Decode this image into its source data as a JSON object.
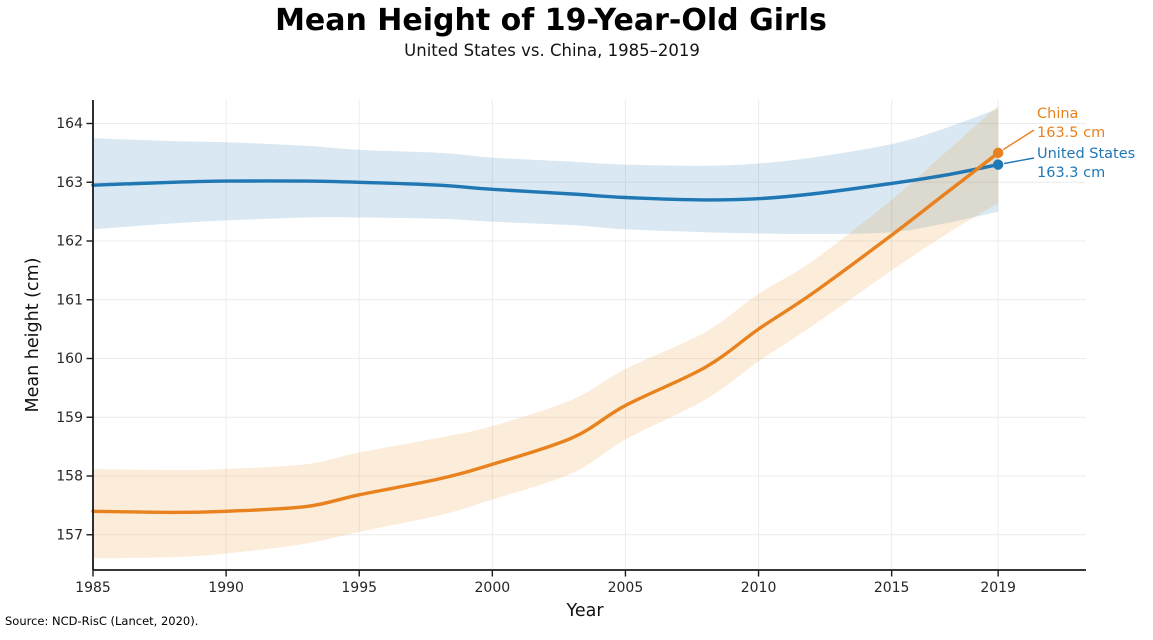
{
  "chart_data": {
    "type": "line",
    "title": "Mean Height of 19-Year-Old Girls",
    "subtitle": "United States vs. China, 1985–2019",
    "xlabel": "Year",
    "ylabel": "Mean height (cm)",
    "source": "Source: NCD-RisC (Lancet, 2020).",
    "xlim": [
      1985,
      2022.3
    ],
    "ylim": [
      156.4,
      164.4
    ],
    "x_ticks": [
      1985,
      1990,
      1995,
      2000,
      2005,
      2010,
      2015,
      2019
    ],
    "y_ticks": [
      157,
      158,
      159,
      160,
      161,
      162,
      163,
      164
    ],
    "grid": true,
    "grid_color": "#ececec",
    "axis_color": "#1a1a1a",
    "tick_label_color": "#262626",
    "legend_position": "end-of-line-labels",
    "x": [
      1985,
      1988,
      1990,
      1993,
      1995,
      1998,
      2000,
      2003,
      2005,
      2008,
      2010,
      2012,
      2015,
      2017,
      2019
    ],
    "series": [
      {
        "name": "United States",
        "color": "#1f77b4",
        "band_color": "rgba(31,119,180,0.17)",
        "values": [
          162.95,
          163.0,
          163.02,
          163.02,
          163.0,
          162.95,
          162.88,
          162.8,
          162.74,
          162.7,
          162.72,
          162.8,
          162.98,
          163.12,
          163.3
        ],
        "band_lo": [
          162.2,
          162.3,
          162.35,
          162.4,
          162.4,
          162.38,
          162.33,
          162.27,
          162.2,
          162.15,
          162.13,
          162.12,
          162.15,
          162.3,
          162.5
        ],
        "band_hi": [
          163.75,
          163.7,
          163.68,
          163.62,
          163.55,
          163.5,
          163.42,
          163.35,
          163.3,
          163.28,
          163.32,
          163.42,
          163.65,
          163.92,
          164.25
        ],
        "end_label": "United States",
        "end_value": 163.3,
        "end_value_label": "163.3 cm"
      },
      {
        "name": "China",
        "color": "#e8821e",
        "band_color": "rgba(240,140,34,0.17)",
        "values": [
          157.4,
          157.38,
          157.4,
          157.48,
          157.68,
          157.95,
          158.2,
          158.65,
          159.2,
          159.85,
          160.5,
          161.1,
          162.1,
          162.8,
          163.5
        ],
        "band_lo": [
          156.6,
          156.62,
          156.68,
          156.85,
          157.05,
          157.33,
          157.6,
          158.05,
          158.62,
          159.3,
          159.95,
          160.55,
          161.5,
          162.1,
          162.65
        ],
        "band_hi": [
          158.12,
          158.1,
          158.12,
          158.2,
          158.4,
          158.65,
          158.85,
          159.3,
          159.82,
          160.45,
          161.1,
          161.65,
          162.7,
          163.5,
          164.3
        ],
        "end_label": "China",
        "end_value": 163.5,
        "end_value_label": "163.5 cm"
      }
    ]
  }
}
